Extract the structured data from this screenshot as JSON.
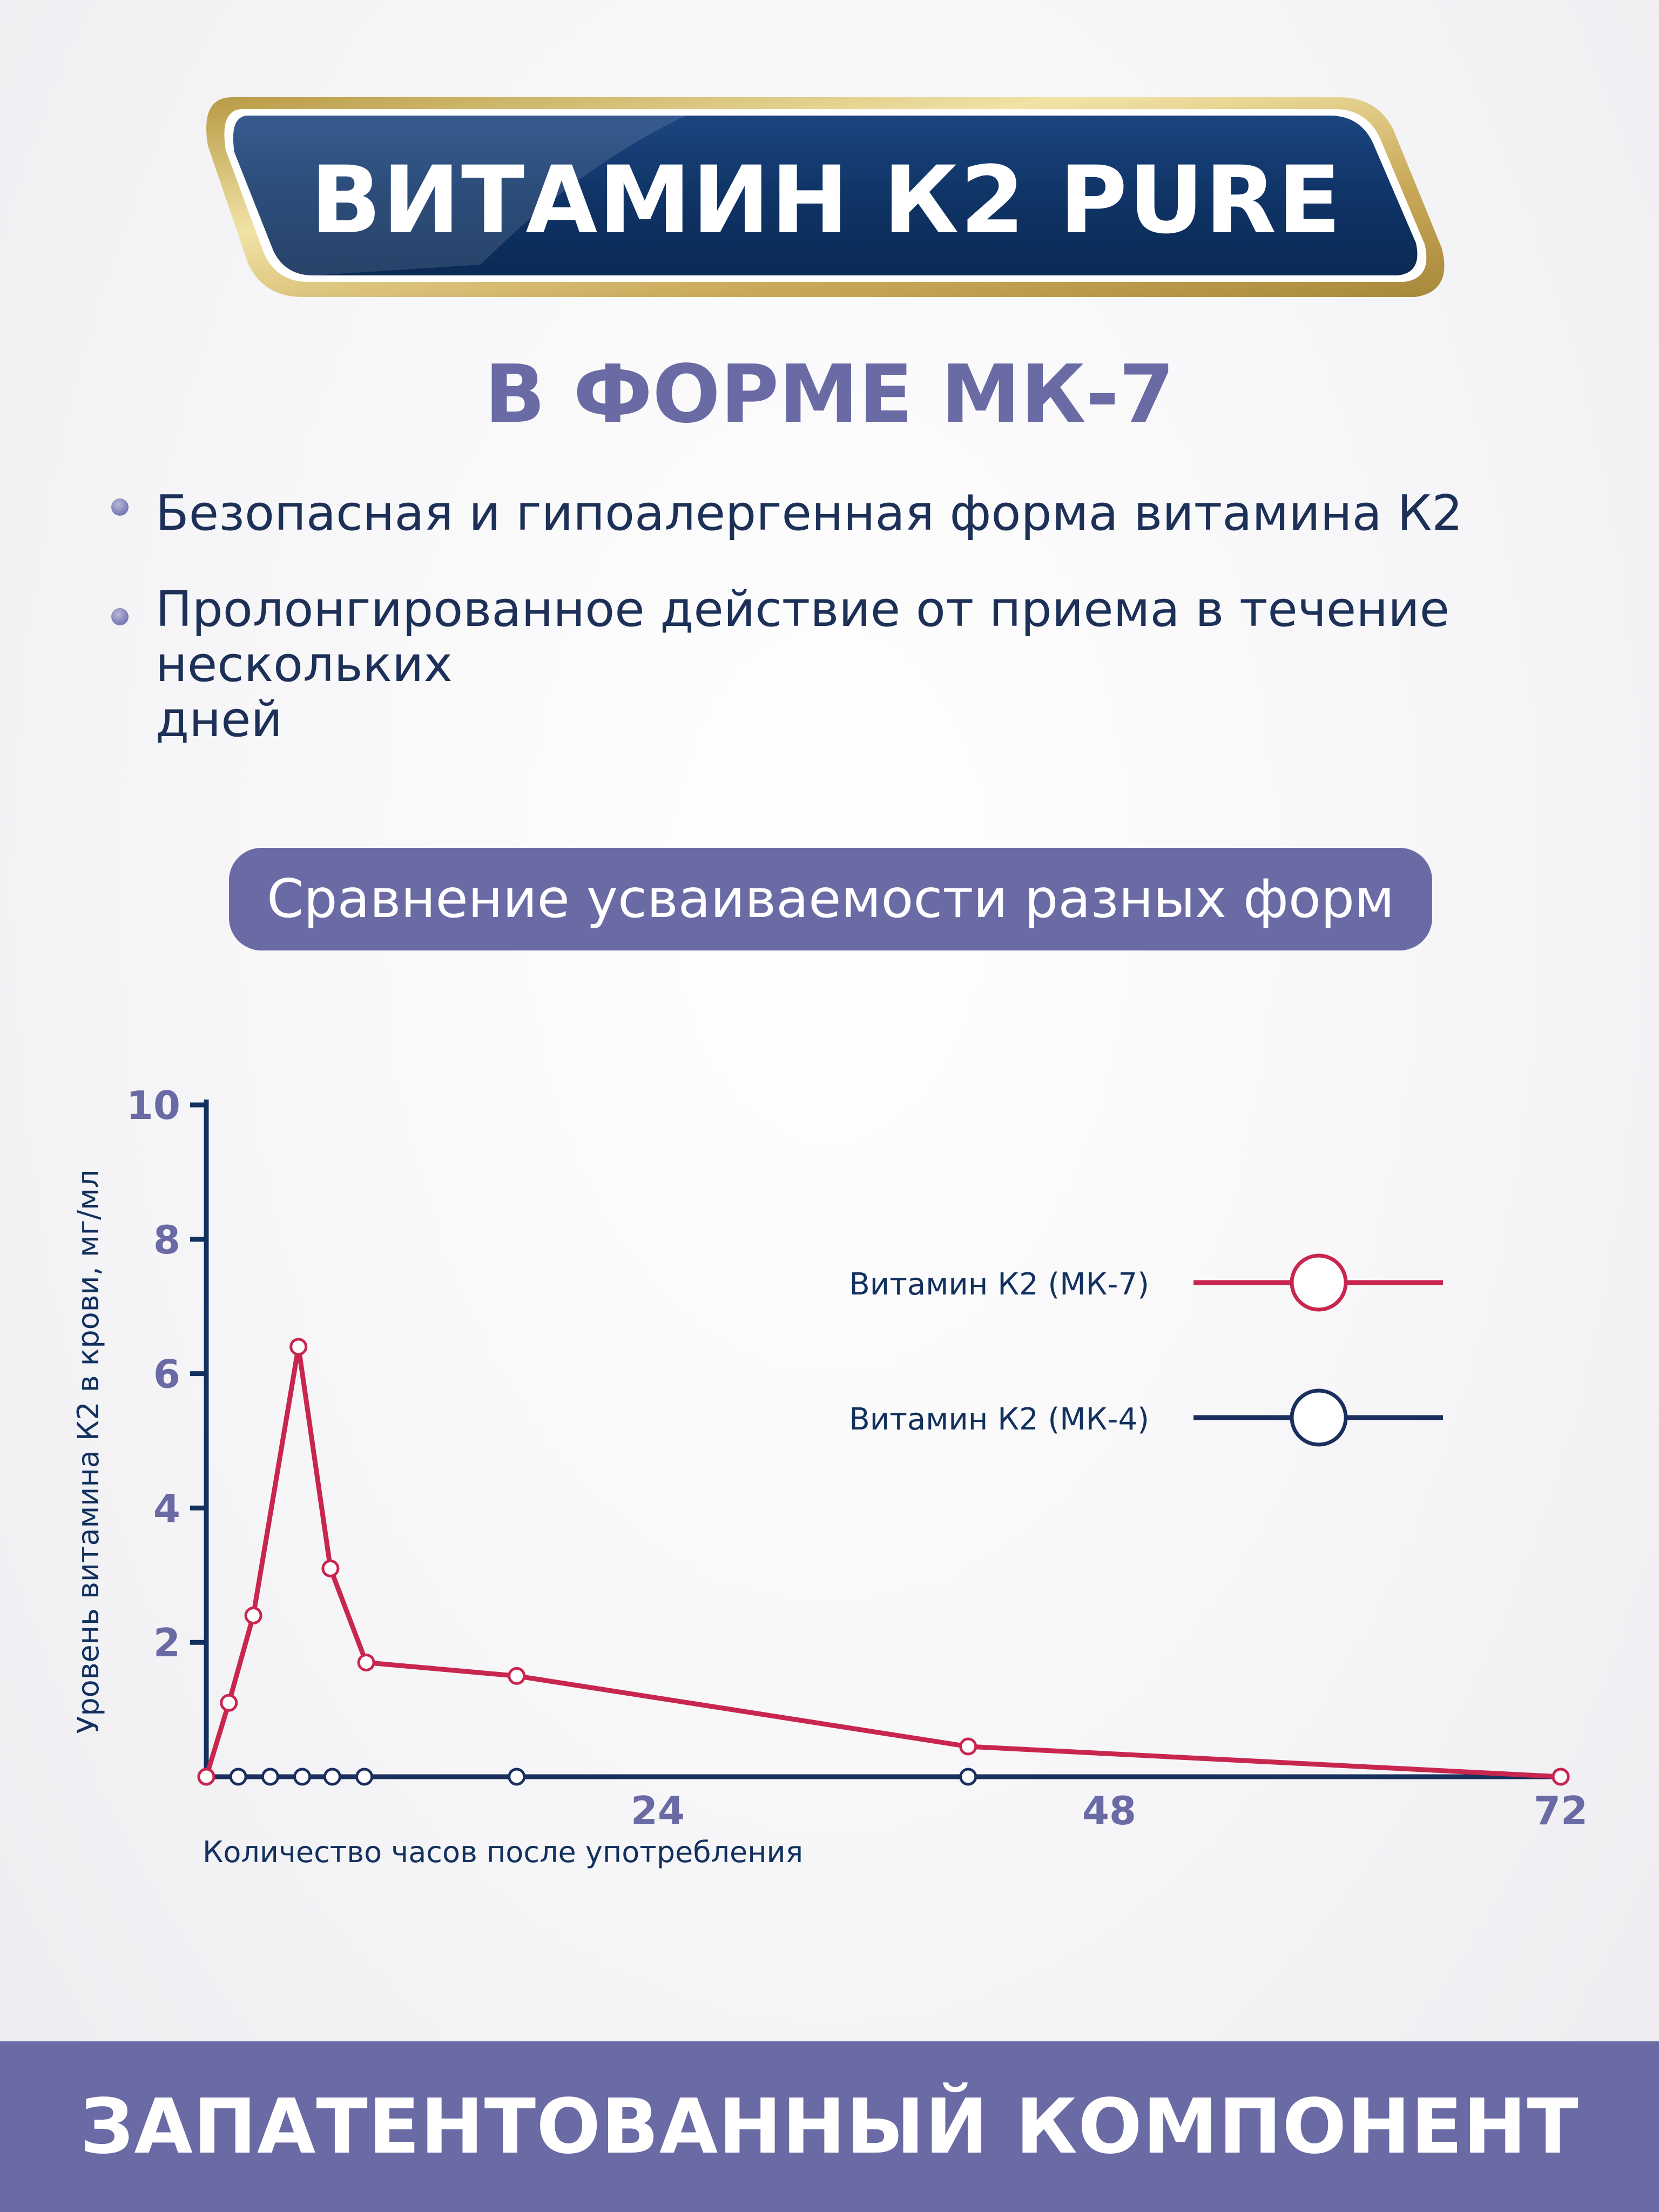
{
  "header": {
    "title": "ВИТАМИН К2 PURE"
  },
  "subtitle": "В ФОРМЕ МК-7",
  "bullets": [
    {
      "lines": [
        "Безопасная и гипоалергенная форма витамина К2"
      ]
    },
    {
      "lines": [
        "Пролонгированное действие от приема в течение",
        "нескольких",
        "дней"
      ]
    }
  ],
  "comparison_label": "Сравнение усваиваемости разных форм",
  "footer": "ЗАПАТЕНТОВАННЫЙ КОМПОНЕНТ",
  "colors": {
    "mk7": "#c8264f",
    "mk4": "#1b2f5e",
    "accent": "#6a6aa5",
    "navy": "#12315f",
    "gold": "#d8c27a"
  },
  "chart_data": {
    "type": "line",
    "xlabel": "Количество часов после употребления",
    "ylabel": "Уровень витамина К2 в крови, мг/мл",
    "x_ticks": [
      24,
      48,
      72
    ],
    "y_ticks": [
      2,
      4,
      6,
      8,
      10
    ],
    "xlim": [
      0,
      72
    ],
    "ylim": [
      0,
      10
    ],
    "grid": false,
    "legend_position": "right",
    "series": [
      {
        "name": "Витамин К2 (МК-7)",
        "color": "#c8264f",
        "points": [
          [
            0,
            0
          ],
          [
            1.2,
            1.1
          ],
          [
            2.5,
            2.4
          ],
          [
            4.9,
            6.4
          ],
          [
            6.6,
            3.1
          ],
          [
            8.5,
            1.7
          ],
          [
            16.5,
            1.5
          ],
          [
            40.5,
            0.45
          ],
          [
            72,
            0
          ]
        ]
      },
      {
        "name": "Витамин К2 (МК-4)",
        "color": "#1b2f5e",
        "points": [
          [
            0,
            0
          ],
          [
            1.7,
            0
          ],
          [
            3.4,
            0
          ],
          [
            5.1,
            0
          ],
          [
            6.7,
            0
          ],
          [
            8.4,
            0
          ],
          [
            16.5,
            0
          ],
          [
            40.5,
            0
          ],
          [
            72,
            0
          ]
        ]
      }
    ]
  }
}
